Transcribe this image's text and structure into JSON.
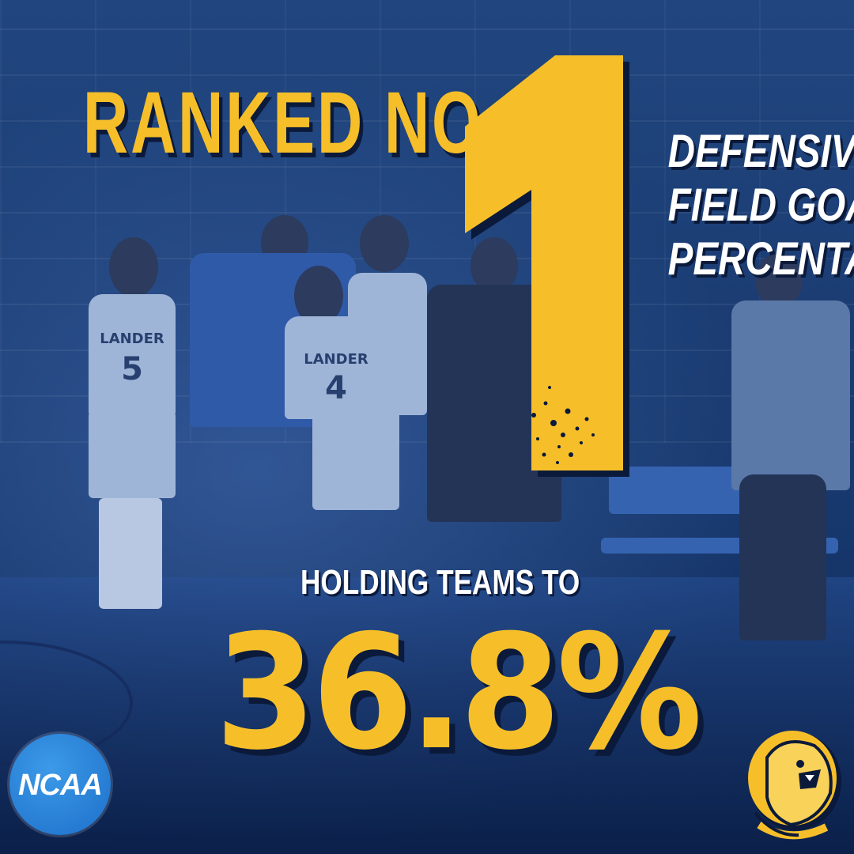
{
  "headline": {
    "prefix": "RANKED NO.",
    "number": "1"
  },
  "category": {
    "lines": [
      "DEFENSIVE",
      "FIELD GOAL",
      "PERCENTAGE"
    ]
  },
  "stat": {
    "lead_in": "HOLDING TEAMS TO",
    "value": "36.8%"
  },
  "logos": {
    "ncaa": "NCAA",
    "mascot": "cougar-mascot-icon"
  },
  "jerseys": [
    {
      "team": "LANDER",
      "number": "5"
    },
    {
      "team": "LANDER",
      "number": "4"
    }
  ],
  "colors": {
    "accent": "#f6bf2a",
    "background": "#1b3d74",
    "ncaa_blue": "#1d6fc9",
    "text_light": "#ffffff"
  }
}
